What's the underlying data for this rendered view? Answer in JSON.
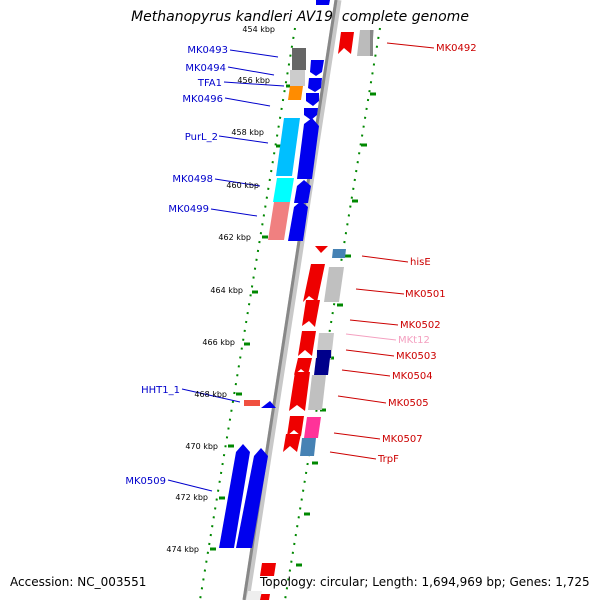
{
  "title": "Methanopyrus kandleri AV19, complete genome",
  "accession_text": "Accession: NC_003551",
  "topology_text": "Topology: circular; Length: 1,694,969 bp; Genes: 1,725",
  "colors": {
    "forward_gene": "#0000ee",
    "reverse_gene": "#ee0000",
    "left_label": "#0000cc",
    "right_label": "#cc0000",
    "rna_label": "#f4a0c0",
    "ticks": "#008800",
    "backbone": "#888888"
  },
  "kbp_labels": [
    "454 kbp",
    "456 kbp",
    "458 kbp",
    "460 kbp",
    "462 kbp",
    "464 kbp",
    "466 kbp",
    "468 kbp",
    "470 kbp",
    "472 kbp",
    "474 kbp"
  ],
  "left_genes": [
    "MK0493",
    "MK0494",
    "TFA1",
    "MK0496",
    "PurL_2",
    "MK0498",
    "MK0499",
    "HHT1_1",
    "MK0509"
  ],
  "right_genes": [
    "MK0492",
    "hisE",
    "MK0501",
    "MK0502",
    "MKt12",
    "MK0503",
    "MK0504",
    "MK0505",
    "MK0507",
    "TrpF"
  ]
}
